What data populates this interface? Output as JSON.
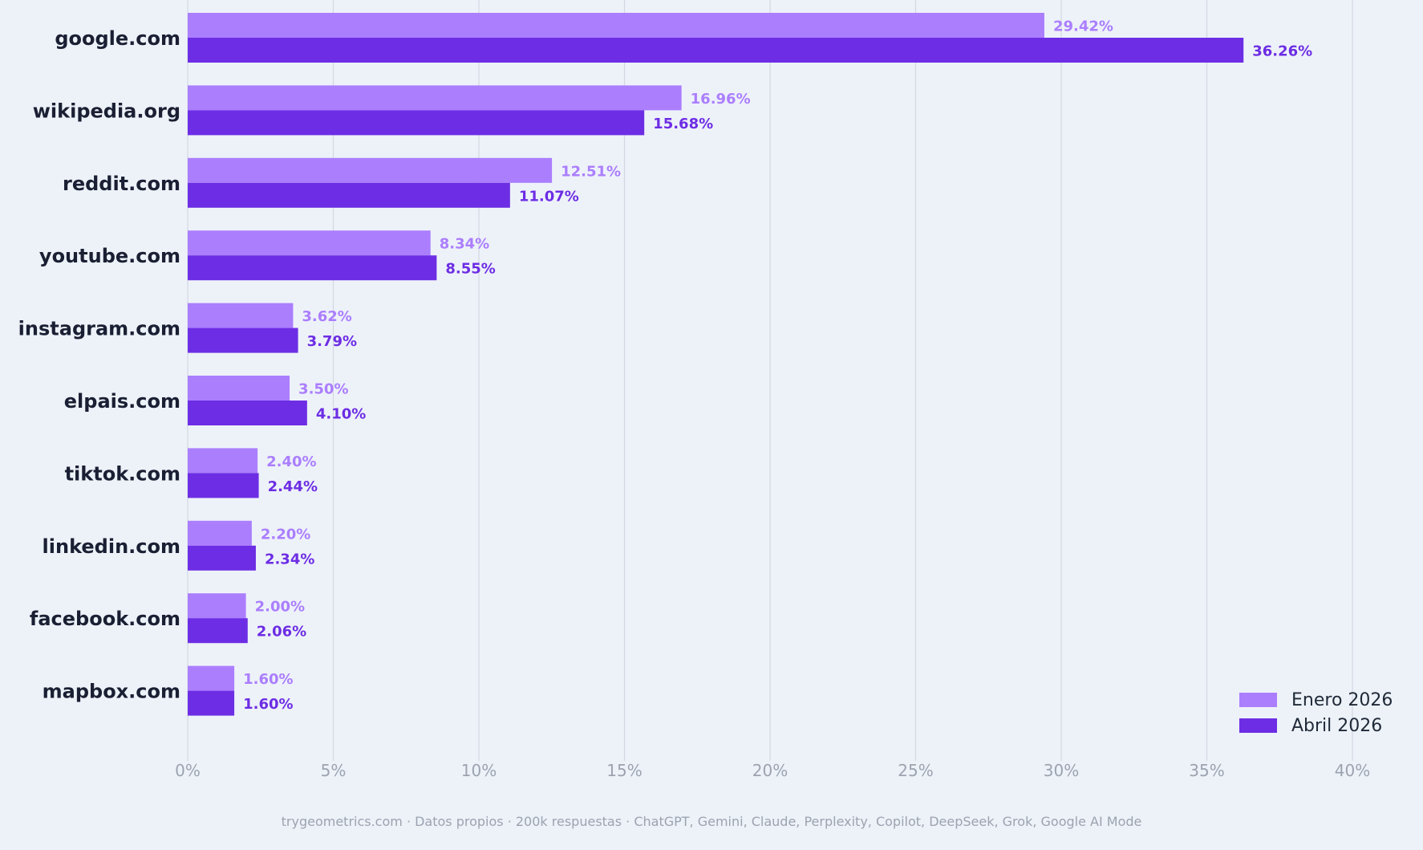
{
  "chart_data": {
    "type": "bar",
    "orientation": "horizontal",
    "categories": [
      "google.com",
      "wikipedia.org",
      "reddit.com",
      "youtube.com",
      "instagram.com",
      "elpais.com",
      "tiktok.com",
      "linkedin.com",
      "facebook.com",
      "mapbox.com"
    ],
    "series": [
      {
        "name": "Enero 2026",
        "color": "#ab7efe",
        "values": [
          29.42,
          16.96,
          12.51,
          8.34,
          3.62,
          3.5,
          2.4,
          2.2,
          2.0,
          1.6
        ],
        "labels": [
          "29.42%",
          "16.96%",
          "12.51%",
          "8.34%",
          "3.62%",
          "3.50%",
          "2.40%",
          "2.20%",
          "2.00%",
          "1.60%"
        ]
      },
      {
        "name": "Abril 2026",
        "color": "#6d2de4",
        "values": [
          36.26,
          15.68,
          11.07,
          8.55,
          3.79,
          4.1,
          2.44,
          2.34,
          2.06,
          1.6
        ],
        "labels": [
          "36.26%",
          "15.68%",
          "11.07%",
          "8.55%",
          "3.79%",
          "4.10%",
          "2.44%",
          "2.34%",
          "2.06%",
          "1.60%"
        ]
      }
    ],
    "xticks": [
      0,
      5,
      10,
      15,
      20,
      25,
      30,
      35,
      40
    ],
    "xtick_labels": [
      "0%",
      "5%",
      "10%",
      "15%",
      "20%",
      "25%",
      "30%",
      "35%",
      "40%"
    ],
    "xlim": [
      0,
      40
    ],
    "grid": "vertical",
    "legend_position": "bottom-right",
    "title": "",
    "xlabel": "",
    "ylabel": ""
  },
  "footer": "trygeometrics.com · Datos propios · 200k respuestas · ChatGPT, Gemini, Claude, Perplexity, Copilot, DeepSeek, Grok, Google AI Mode",
  "colors": {
    "background": "#edf2f9",
    "grid": "#d4d8e2",
    "category_text": "#1a1f33",
    "tick_text": "#9ca3af"
  }
}
